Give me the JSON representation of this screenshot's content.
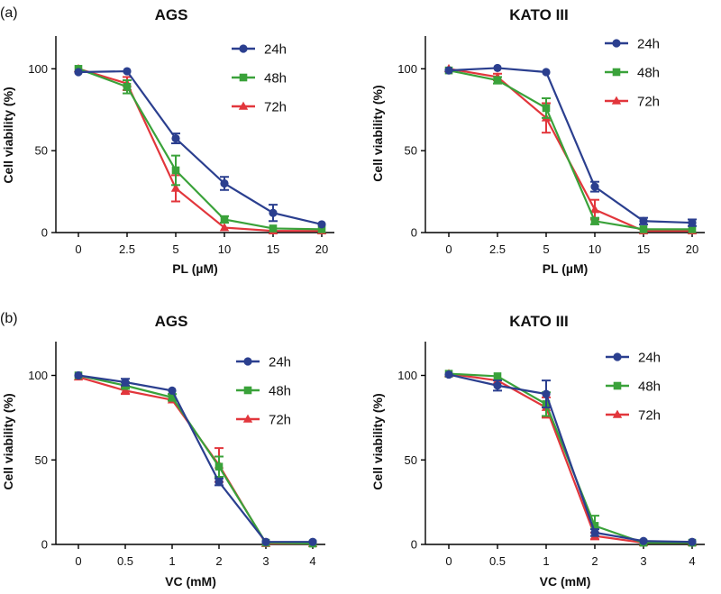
{
  "panel_labels": [
    "(a)",
    "(b)"
  ],
  "colors": {
    "24h": "#2b3f8f",
    "48h": "#3aa23a",
    "72h": "#e2363c"
  },
  "chart_data": [
    {
      "type": "line",
      "title": "AGS",
      "xlabel": "PL (µM)",
      "ylabel": "Cell viability (%)",
      "categories": [
        "0",
        "2.5",
        "5",
        "10",
        "15",
        "20"
      ],
      "ylim": [
        0,
        120
      ],
      "yticks": [
        0,
        50,
        100
      ],
      "grid": false,
      "legend_position": "top-right",
      "series": [
        {
          "name": "24h",
          "marker": "circle",
          "values": [
            98,
            98.5,
            57.5,
            30,
            12,
            5
          ],
          "errors": [
            1,
            1,
            3,
            4,
            5,
            1
          ]
        },
        {
          "name": "48h",
          "marker": "square",
          "values": [
            100,
            89,
            38,
            8,
            2.5,
            2
          ],
          "errors": [
            1,
            4,
            9,
            2,
            1,
            1
          ]
        },
        {
          "name": "72h",
          "marker": "triangle",
          "values": [
            100,
            91,
            27,
            3,
            1,
            1
          ],
          "errors": [
            1,
            4,
            8,
            1,
            1,
            1
          ]
        }
      ]
    },
    {
      "type": "line",
      "title": "KATO III",
      "xlabel": "PL (µM)",
      "ylabel": "Cell viability (%)",
      "categories": [
        "0",
        "2.5",
        "5",
        "10",
        "15",
        "20"
      ],
      "ylim": [
        0,
        120
      ],
      "yticks": [
        0,
        50,
        100
      ],
      "grid": false,
      "legend_position": "top-right",
      "series": [
        {
          "name": "24h",
          "marker": "circle",
          "values": [
            99,
            100.5,
            98,
            28,
            7,
            6
          ],
          "errors": [
            1,
            1,
            1,
            3,
            2,
            2
          ]
        },
        {
          "name": "48h",
          "marker": "square",
          "values": [
            99,
            93,
            76,
            7,
            2,
            2
          ],
          "errors": [
            1,
            2,
            6,
            2,
            1,
            1
          ]
        },
        {
          "name": "72h",
          "marker": "triangle",
          "values": [
            100,
            95,
            70,
            14,
            1,
            1
          ],
          "errors": [
            1,
            2,
            9,
            6,
            1,
            1
          ]
        }
      ]
    },
    {
      "type": "line",
      "title": "AGS",
      "xlabel": "VC (mM)",
      "ylabel": "Cell viability (%)",
      "categories": [
        "0",
        "0.5",
        "1",
        "2",
        "3",
        "4"
      ],
      "ylim": [
        0,
        120
      ],
      "yticks": [
        0,
        50,
        100
      ],
      "grid": false,
      "legend_position": "top-right",
      "series": [
        {
          "name": "24h",
          "marker": "circle",
          "values": [
            100,
            96,
            91,
            37,
            1.5,
            1.5
          ],
          "errors": [
            1,
            2,
            1,
            2,
            1,
            1
          ]
        },
        {
          "name": "48h",
          "marker": "square",
          "values": [
            100,
            94,
            87,
            46,
            1,
            0.5
          ],
          "errors": [
            1,
            2,
            2,
            6,
            1,
            1
          ]
        },
        {
          "name": "72h",
          "marker": "triangle",
          "values": [
            99,
            91,
            85.5,
            47,
            0.5,
            0.5
          ],
          "errors": [
            1,
            2,
            1,
            10,
            1,
            1
          ]
        }
      ]
    },
    {
      "type": "line",
      "title": "KATO III",
      "xlabel": "VC (mM)",
      "ylabel": "Cell viability (%)",
      "categories": [
        "0",
        "0.5",
        "1",
        "2",
        "3",
        "4"
      ],
      "ylim": [
        0,
        120
      ],
      "yticks": [
        0,
        50,
        100
      ],
      "grid": false,
      "legend_position": "top-right",
      "series": [
        {
          "name": "24h",
          "marker": "circle",
          "values": [
            100.5,
            94,
            89,
            7,
            2,
            1.5
          ],
          "errors": [
            1,
            3,
            8,
            2,
            1,
            1
          ]
        },
        {
          "name": "48h",
          "marker": "square",
          "values": [
            101,
            99.5,
            83,
            11,
            1,
            1
          ],
          "errors": [
            1,
            1,
            7,
            6,
            1,
            1
          ]
        },
        {
          "name": "72h",
          "marker": "triangle",
          "values": [
            101,
            97,
            81,
            5,
            1,
            1
          ],
          "errors": [
            1,
            1,
            6,
            2,
            1,
            1
          ]
        }
      ]
    }
  ]
}
